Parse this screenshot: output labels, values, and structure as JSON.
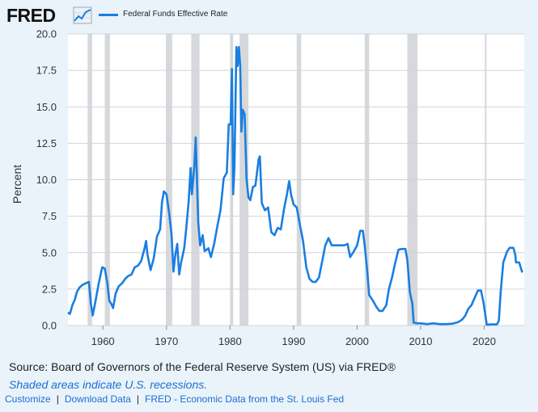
{
  "header": {
    "logo": "FRED",
    "legend_label": "Federal Funds Effective Rate",
    "colors": {
      "series": "#1a7ee0",
      "recession": "#d6d8db",
      "grid": "#cfd4da"
    }
  },
  "chart_data": {
    "type": "line",
    "ylabel": "Percent",
    "ylim": [
      0,
      20
    ],
    "xlim": [
      1954.5,
      2026.3
    ],
    "yticks": [
      "0.0",
      "2.5",
      "5.0",
      "7.5",
      "10.0",
      "12.5",
      "15.0",
      "17.5",
      "20.0"
    ],
    "xticks": [
      "1960",
      "1970",
      "1980",
      "1990",
      "2000",
      "2010",
      "2020"
    ],
    "grid": true,
    "recessions": [
      [
        1957.6,
        1958.3
      ],
      [
        1960.3,
        1961.1
      ],
      [
        1969.9,
        1970.9
      ],
      [
        1973.9,
        1975.2
      ],
      [
        1980.0,
        1980.5
      ],
      [
        1981.5,
        1982.9
      ],
      [
        1990.5,
        1991.2
      ],
      [
        2001.2,
        2001.9
      ],
      [
        2007.9,
        2009.5
      ],
      [
        2020.1,
        2020.3
      ]
    ],
    "series": [
      {
        "values": [
          [
            1954.5,
            0.9
          ],
          [
            1954.8,
            0.8
          ],
          [
            1955.2,
            1.4
          ],
          [
            1955.6,
            1.8
          ],
          [
            1955.9,
            2.3
          ],
          [
            1956.3,
            2.6
          ],
          [
            1956.8,
            2.8
          ],
          [
            1957.3,
            2.9
          ],
          [
            1957.8,
            3.0
          ],
          [
            1958.1,
            1.5
          ],
          [
            1958.4,
            0.7
          ],
          [
            1958.8,
            1.6
          ],
          [
            1959.3,
            2.8
          ],
          [
            1959.7,
            3.6
          ],
          [
            1959.9,
            4.0
          ],
          [
            1960.3,
            3.9
          ],
          [
            1960.7,
            2.9
          ],
          [
            1961.0,
            1.7
          ],
          [
            1961.3,
            1.5
          ],
          [
            1961.6,
            1.2
          ],
          [
            1962.0,
            2.2
          ],
          [
            1962.5,
            2.7
          ],
          [
            1963.0,
            2.9
          ],
          [
            1963.5,
            3.2
          ],
          [
            1964.0,
            3.4
          ],
          [
            1964.5,
            3.5
          ],
          [
            1965.0,
            4.0
          ],
          [
            1965.5,
            4.1
          ],
          [
            1966.0,
            4.4
          ],
          [
            1966.5,
            5.2
          ],
          [
            1966.8,
            5.8
          ],
          [
            1967.0,
            4.9
          ],
          [
            1967.5,
            3.8
          ],
          [
            1968.0,
            4.6
          ],
          [
            1968.5,
            6.1
          ],
          [
            1969.0,
            6.6
          ],
          [
            1969.3,
            8.5
          ],
          [
            1969.6,
            9.2
          ],
          [
            1970.0,
            9.0
          ],
          [
            1970.4,
            7.8
          ],
          [
            1970.8,
            6.3
          ],
          [
            1971.1,
            3.7
          ],
          [
            1971.4,
            4.9
          ],
          [
            1971.7,
            5.6
          ],
          [
            1972.0,
            3.5
          ],
          [
            1972.3,
            4.3
          ],
          [
            1972.8,
            5.3
          ],
          [
            1973.1,
            6.6
          ],
          [
            1973.5,
            8.5
          ],
          [
            1973.8,
            10.8
          ],
          [
            1974.0,
            9.0
          ],
          [
            1974.4,
            11.0
          ],
          [
            1974.6,
            12.9
          ],
          [
            1974.8,
            10.0
          ],
          [
            1975.0,
            7.1
          ],
          [
            1975.3,
            5.5
          ],
          [
            1975.7,
            6.2
          ],
          [
            1976.0,
            5.1
          ],
          [
            1976.6,
            5.3
          ],
          [
            1977.0,
            4.7
          ],
          [
            1977.5,
            5.6
          ],
          [
            1978.0,
            6.8
          ],
          [
            1978.5,
            7.9
          ],
          [
            1979.0,
            10.1
          ],
          [
            1979.5,
            10.5
          ],
          [
            1979.8,
            13.8
          ],
          [
            1980.1,
            13.8
          ],
          [
            1980.3,
            17.6
          ],
          [
            1980.5,
            9.0
          ],
          [
            1980.7,
            10.9
          ],
          [
            1981.0,
            19.1
          ],
          [
            1981.2,
            17.8
          ],
          [
            1981.4,
            19.1
          ],
          [
            1981.6,
            17.8
          ],
          [
            1981.8,
            13.3
          ],
          [
            1982.0,
            14.8
          ],
          [
            1982.3,
            14.5
          ],
          [
            1982.6,
            10.1
          ],
          [
            1982.9,
            8.8
          ],
          [
            1983.2,
            8.6
          ],
          [
            1983.6,
            9.5
          ],
          [
            1984.0,
            9.6
          ],
          [
            1984.5,
            11.4
          ],
          [
            1984.7,
            11.6
          ],
          [
            1985.0,
            8.4
          ],
          [
            1985.5,
            7.9
          ],
          [
            1986.0,
            8.1
          ],
          [
            1986.5,
            6.4
          ],
          [
            1987.0,
            6.2
          ],
          [
            1987.5,
            6.7
          ],
          [
            1988.0,
            6.6
          ],
          [
            1988.5,
            8.0
          ],
          [
            1989.0,
            9.1
          ],
          [
            1989.3,
            9.9
          ],
          [
            1989.6,
            9.0
          ],
          [
            1990.0,
            8.3
          ],
          [
            1990.5,
            8.1
          ],
          [
            1991.0,
            6.9
          ],
          [
            1991.5,
            5.8
          ],
          [
            1992.0,
            4.0
          ],
          [
            1992.5,
            3.2
          ],
          [
            1993.0,
            3.0
          ],
          [
            1993.5,
            3.0
          ],
          [
            1994.0,
            3.3
          ],
          [
            1994.5,
            4.4
          ],
          [
            1995.0,
            5.5
          ],
          [
            1995.5,
            6.0
          ],
          [
            1996.0,
            5.5
          ],
          [
            1997.0,
            5.5
          ],
          [
            1998.0,
            5.5
          ],
          [
            1998.5,
            5.6
          ],
          [
            1998.9,
            4.7
          ],
          [
            1999.5,
            5.1
          ],
          [
            2000.0,
            5.5
          ],
          [
            2000.5,
            6.5
          ],
          [
            2000.9,
            6.5
          ],
          [
            2001.2,
            5.5
          ],
          [
            2001.6,
            3.7
          ],
          [
            2001.9,
            2.1
          ],
          [
            2002.5,
            1.7
          ],
          [
            2003.0,
            1.3
          ],
          [
            2003.5,
            1.0
          ],
          [
            2004.0,
            1.0
          ],
          [
            2004.6,
            1.4
          ],
          [
            2005.0,
            2.5
          ],
          [
            2005.5,
            3.3
          ],
          [
            2006.0,
            4.3
          ],
          [
            2006.5,
            5.2
          ],
          [
            2007.0,
            5.25
          ],
          [
            2007.6,
            5.25
          ],
          [
            2007.9,
            4.5
          ],
          [
            2008.3,
            2.3
          ],
          [
            2008.7,
            1.5
          ],
          [
            2008.9,
            0.2
          ],
          [
            2009.5,
            0.15
          ],
          [
            2010.0,
            0.15
          ],
          [
            2011.0,
            0.1
          ],
          [
            2012.0,
            0.15
          ],
          [
            2013.0,
            0.1
          ],
          [
            2014.0,
            0.1
          ],
          [
            2015.0,
            0.13
          ],
          [
            2015.9,
            0.24
          ],
          [
            2016.5,
            0.4
          ],
          [
            2017.0,
            0.66
          ],
          [
            2017.5,
            1.15
          ],
          [
            2018.0,
            1.4
          ],
          [
            2018.5,
            1.9
          ],
          [
            2019.0,
            2.4
          ],
          [
            2019.5,
            2.4
          ],
          [
            2019.9,
            1.55
          ],
          [
            2020.2,
            0.65
          ],
          [
            2020.4,
            0.05
          ],
          [
            2021.0,
            0.08
          ],
          [
            2022.0,
            0.08
          ],
          [
            2022.3,
            0.33
          ],
          [
            2022.6,
            2.33
          ],
          [
            2023.0,
            4.33
          ],
          [
            2023.6,
            5.08
          ],
          [
            2024.0,
            5.33
          ],
          [
            2024.6,
            5.33
          ],
          [
            2024.9,
            4.83
          ],
          [
            2025.0,
            4.33
          ],
          [
            2025.5,
            4.33
          ],
          [
            2025.8,
            3.9
          ],
          [
            2026.0,
            3.64
          ]
        ]
      }
    ]
  },
  "footer": {
    "source": "Source: Board of Governors of the Federal Reserve System (US) via FRED®",
    "note": "Shaded areas indicate U.S. recessions.",
    "links": [
      "Customize",
      "Download Data",
      "FRED - Economic Data from the St. Louis Fed"
    ]
  }
}
